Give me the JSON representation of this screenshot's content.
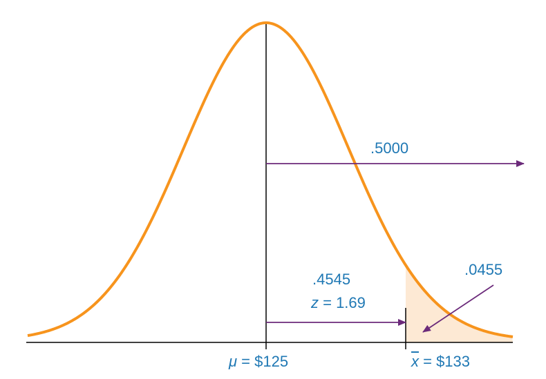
{
  "annotations": {
    "total_right_area": ".5000",
    "middle_area": ".4545",
    "z_var": "z",
    "z_text": " = 1.69",
    "tail_area": ".0455"
  },
  "axis": {
    "mu_symbol": "μ",
    "mu_text": " = $125",
    "xbar_symbol": "x",
    "xbar_text": " = $133"
  },
  "colors": {
    "curve": "#f7941d",
    "shade": "#fde9d4",
    "arrow": "#6b2a7a",
    "text": "#1f78b4",
    "axis": "#000000"
  },
  "distribution": {
    "mean": 125,
    "sample_mean": 133,
    "z": 1.69,
    "area_mean_to_xbar": 0.4545,
    "area_right_half": 0.5,
    "area_tail": 0.0455
  }
}
